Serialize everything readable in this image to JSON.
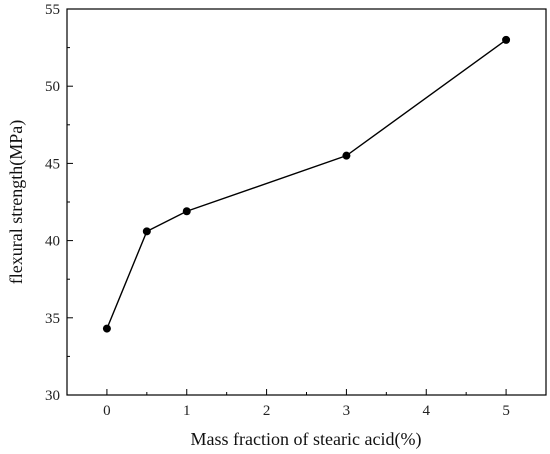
{
  "chart_data": {
    "type": "line",
    "title": "",
    "xlabel": "Mass fraction of stearic acid(%)",
    "ylabel": "flexural strength(MPa)",
    "xlim": [
      -0.5,
      5.5
    ],
    "ylim": [
      30,
      55
    ],
    "xticks": [
      0,
      1,
      2,
      3,
      4,
      5
    ],
    "yticks": [
      30,
      35,
      40,
      45,
      50,
      55
    ],
    "grid": false,
    "legend": "none",
    "series": [
      {
        "x": [
          0,
          0.5,
          1,
          3,
          5
        ],
        "y": [
          34.3,
          40.6,
          41.9,
          45.5,
          53.0
        ],
        "color": "#000000",
        "marker": "circle"
      }
    ]
  }
}
